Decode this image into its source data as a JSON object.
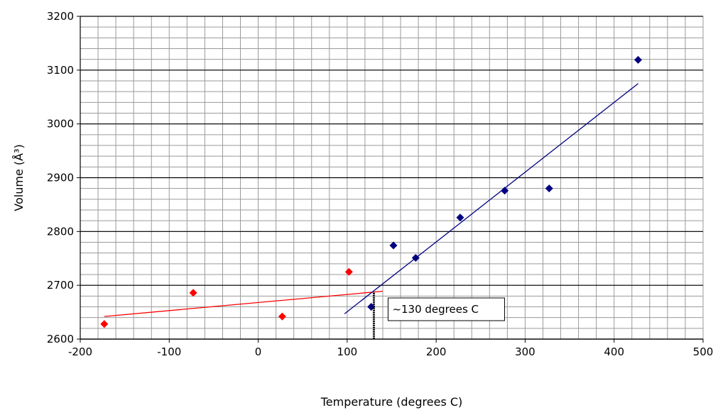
{
  "chart_data": {
    "type": "scatter",
    "xlabel": "Temperature (degrees C)",
    "ylabel": "Volume (Å³)",
    "xlim": [
      -200,
      500
    ],
    "ylim": [
      2600,
      3200
    ],
    "x_ticks": [
      -200,
      -100,
      0,
      100,
      200,
      300,
      400,
      500
    ],
    "y_ticks": [
      2600,
      2700,
      2800,
      2900,
      3000,
      3100,
      3200
    ],
    "grid": "major and minor",
    "series": [
      {
        "color": "#ff0000",
        "marker": "diamond",
        "points": [
          [
            -173,
            2628
          ],
          [
            -73,
            2686
          ],
          [
            27,
            2642
          ],
          [
            102,
            2725
          ]
        ],
        "trendline": [
          [
            -173,
            2642
          ],
          [
            140,
            2689
          ]
        ]
      },
      {
        "color": "#000080",
        "marker": "diamond",
        "points": [
          [
            127,
            2660
          ],
          [
            152,
            2774
          ],
          [
            177,
            2751
          ],
          [
            227,
            2826
          ],
          [
            277,
            2876
          ],
          [
            327,
            2880
          ],
          [
            427,
            3119
          ]
        ],
        "trendline": [
          [
            97,
            2647
          ],
          [
            427,
            3075
          ]
        ]
      }
    ],
    "annotation": {
      "text": "~130 degrees C",
      "x": 130,
      "y": 2686
    }
  }
}
